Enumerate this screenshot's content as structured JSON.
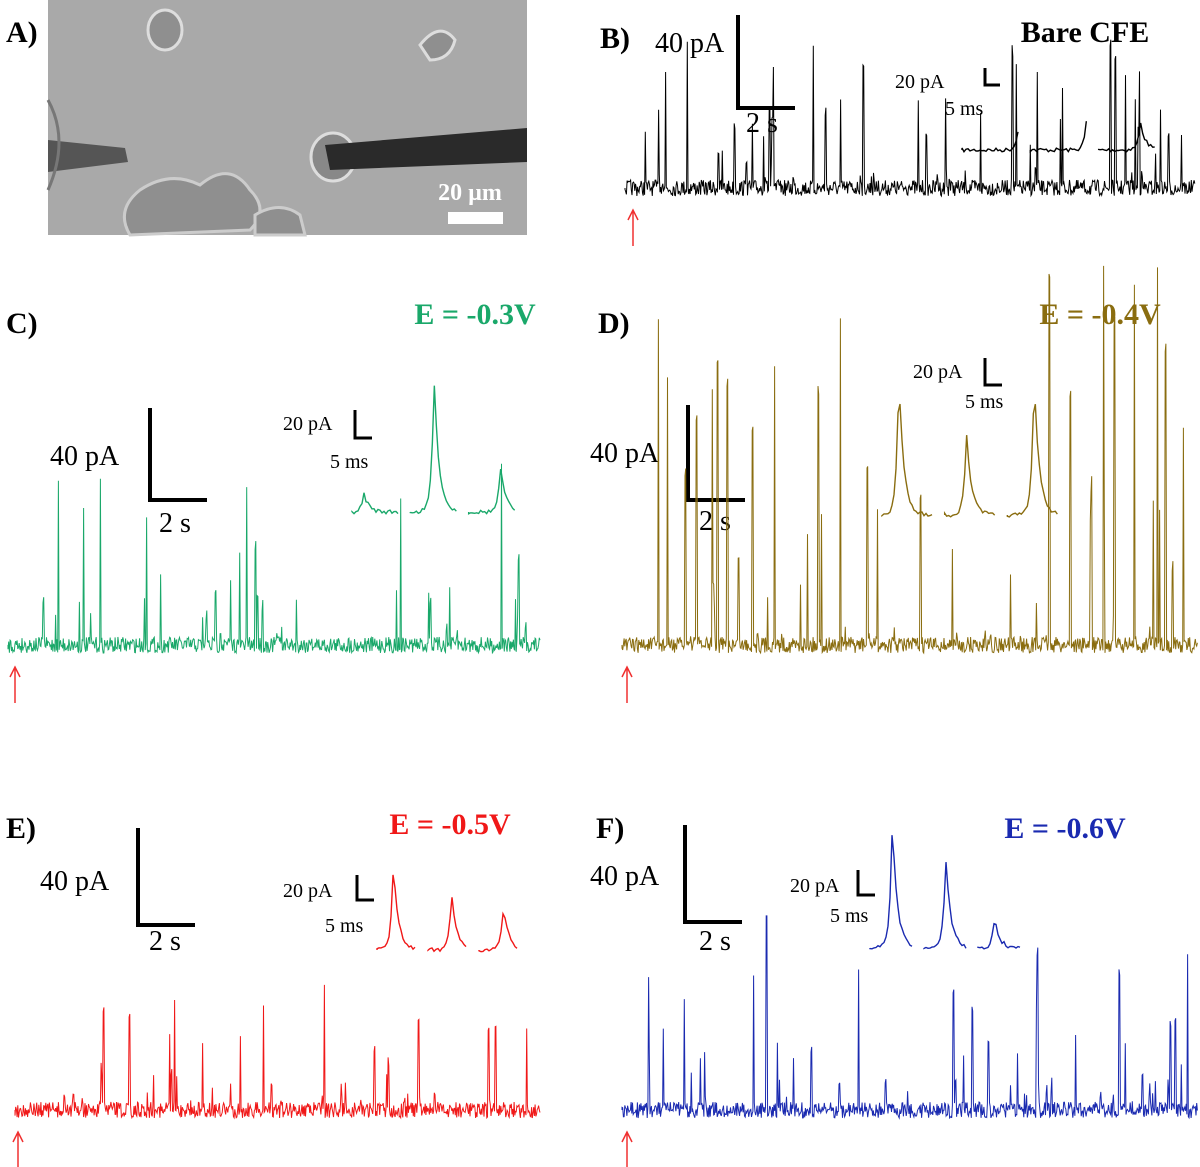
{
  "panel_a": {
    "label": "A)",
    "scale_bar": "20 µm"
  },
  "panels": [
    {
      "label": "B)",
      "condition": "Bare CFE",
      "scale_y": "40 pA",
      "scale_x": "2 s",
      "inset_scale_y": "20 pA",
      "inset_scale_x": "5 ms"
    },
    {
      "label": "C)",
      "condition": "E = -0.3V",
      "scale_y": "40 pA",
      "scale_x": "2 s",
      "inset_scale_y": "20 pA",
      "inset_scale_x": "5 ms"
    },
    {
      "label": "D)",
      "condition": "E = -0.4V",
      "scale_y": "40 pA",
      "scale_x": "2 s",
      "inset_scale_y": "20 pA",
      "inset_scale_x": "5 ms"
    },
    {
      "label": "E)",
      "condition": "E = -0.5V",
      "scale_y": "40 pA",
      "scale_x": "2 s",
      "inset_scale_y": "20 pA",
      "inset_scale_x": "5 ms"
    },
    {
      "label": "F)",
      "condition": "E = -0.6V",
      "scale_y": "40 pA",
      "scale_x": "2 s",
      "inset_scale_y": "20 pA",
      "inset_scale_x": "5 ms"
    }
  ]
}
